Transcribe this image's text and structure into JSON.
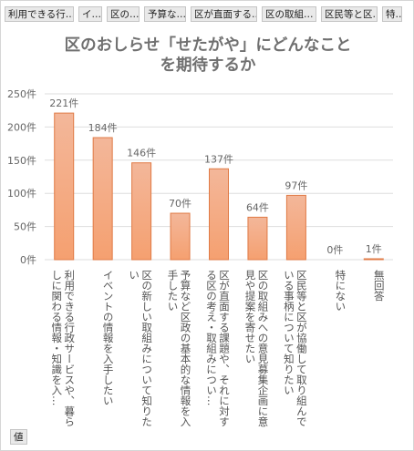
{
  "filters": [
    {
      "label": "利用できる行…",
      "width": 76
    },
    {
      "label": "イ…",
      "width": 26
    },
    {
      "label": "区の…",
      "width": 36
    },
    {
      "label": "予算な…",
      "width": 46
    },
    {
      "label": "区が直面する…",
      "width": 73
    },
    {
      "label": "区の取組…",
      "width": 60
    },
    {
      "label": "区民等と区…",
      "width": 62
    },
    {
      "label": "特…",
      "width": 22
    }
  ],
  "value_field": "値",
  "colors": {
    "bar_top": "#f3b79a",
    "bar_bottom": "#f5a070",
    "bar_stroke": "#e07a45"
  },
  "chart_data": {
    "type": "bar",
    "title_lines": [
      "区のおしらせ「せたがや」にどんなこと",
      "を期待するか"
    ],
    "categories": [
      "利用できる行政サービスや、暮らしに関わる情報・知識を入…",
      "イベントの情報を入手したい",
      "区の新しい取組みについて知りたい",
      "予算など区政の基本的な情報を入手したい",
      "区が直面する課題や、それに対する区の考え・取組みについ…",
      "区の取組みへの意見募集企画に意見や提案を寄せたい",
      "区民等と区が協働して取り組んでいる事柄について知りたい",
      "特にない",
      "無回答"
    ],
    "values": [
      221,
      184,
      146,
      70,
      137,
      64,
      97,
      0,
      1
    ],
    "data_labels": [
      "221件",
      "184件",
      "146件",
      "70件",
      "137件",
      "64件",
      "97件",
      "0件",
      "1件"
    ],
    "yticks": [
      0,
      50,
      100,
      150,
      200,
      250
    ],
    "ytick_labels": [
      "0件",
      "50件",
      "100件",
      "150件",
      "200件",
      "250件"
    ],
    "ylim": [
      0,
      250
    ],
    "grid": true,
    "legend": "none"
  }
}
